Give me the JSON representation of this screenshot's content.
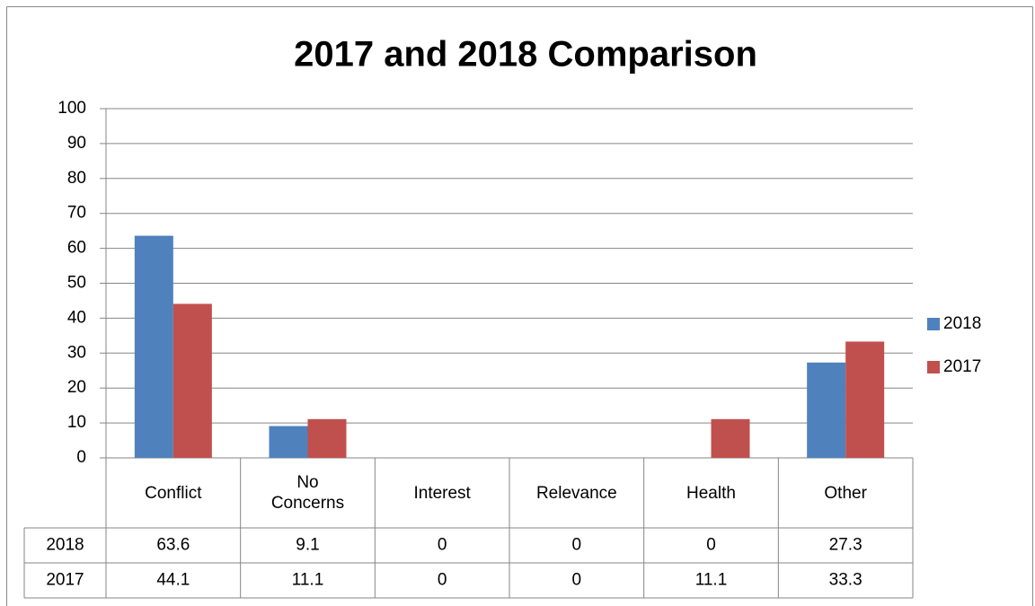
{
  "chart_data": {
    "type": "bar",
    "title": "2017 and 2018 Comparison",
    "categories": [
      "Conflict",
      "No Concerns",
      "Interest",
      "Relevance",
      "Health",
      "Other"
    ],
    "series": [
      {
        "name": "2018",
        "color": "#4f81bd",
        "values": [
          63.6,
          9.1,
          0,
          0,
          0,
          27.3
        ]
      },
      {
        "name": "2017",
        "color": "#c0504d",
        "values": [
          44.1,
          11.1,
          0,
          0,
          11.1,
          33.3
        ]
      }
    ],
    "ylim": [
      0,
      100
    ],
    "yticks": [
      0,
      10,
      20,
      30,
      40,
      50,
      60,
      70,
      80,
      90,
      100
    ],
    "grid": true,
    "legend": "right",
    "data_table": true
  }
}
